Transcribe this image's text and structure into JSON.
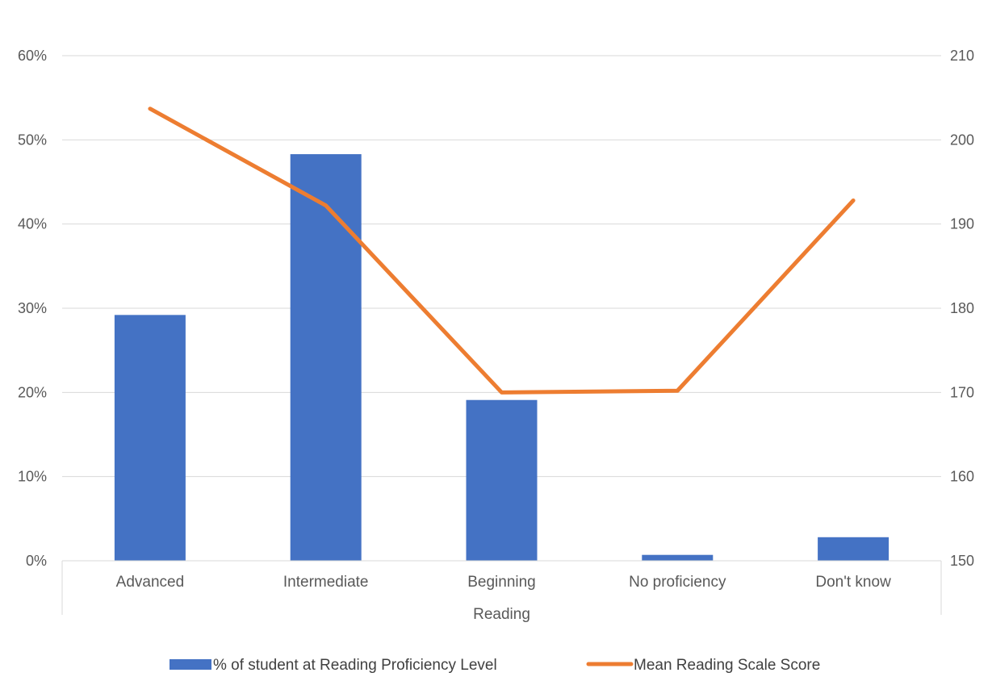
{
  "chart_data": {
    "type": "bar",
    "categories": [
      "Advanced",
      "Intermediate",
      "Beginning",
      "No proficiency",
      "Don't know"
    ],
    "group_label": "Reading",
    "series": [
      {
        "name": "% of student at Reading Proficiency Level",
        "type": "bar",
        "axis": "left",
        "color": "#4472C4",
        "values": [
          0.292,
          0.483,
          0.191,
          0.007,
          0.028
        ]
      },
      {
        "name": "Mean Reading Scale Score",
        "type": "line",
        "axis": "right",
        "color": "#ED7D31",
        "values": [
          203.7,
          192.2,
          170.0,
          170.2,
          192.8
        ]
      }
    ],
    "y_left": {
      "ylim": [
        0,
        0.6
      ],
      "ticks": [
        0,
        0.1,
        0.2,
        0.3,
        0.4,
        0.5,
        0.6
      ],
      "tick_labels": [
        "0%",
        "10%",
        "20%",
        "30%",
        "40%",
        "50%",
        "60%"
      ]
    },
    "y_right": {
      "ylim": [
        150,
        210
      ],
      "ticks": [
        150,
        160,
        170,
        180,
        190,
        200,
        210
      ],
      "tick_labels": [
        "150",
        "160",
        "170",
        "180",
        "190",
        "200",
        "210"
      ]
    },
    "grid": true,
    "legend_position": "bottom"
  }
}
